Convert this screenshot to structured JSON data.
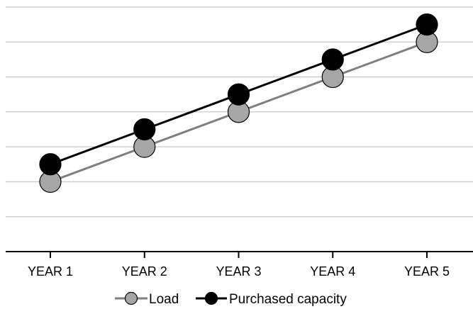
{
  "chart_data": {
    "type": "line",
    "categories": [
      "YEAR 1",
      "YEAR 2",
      "YEAR 3",
      "YEAR 4",
      "YEAR 5"
    ],
    "ylim": [
      0,
      7
    ],
    "grid": true,
    "legend": "bottom",
    "series": [
      {
        "name": "Load",
        "values": [
          2,
          3,
          4,
          5,
          6
        ],
        "color": "#7f7f7f",
        "marker_fill": "#a6a6a6"
      },
      {
        "name": "Purchased capacity",
        "values": [
          2.5,
          3.5,
          4.5,
          5.5,
          6.5
        ],
        "color": "#000000",
        "marker_fill": "#000000"
      }
    ]
  }
}
